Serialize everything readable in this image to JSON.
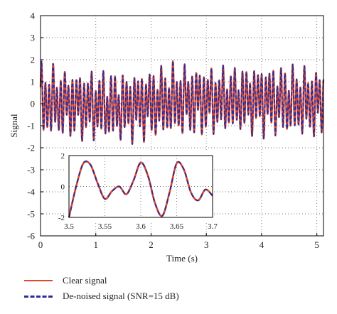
{
  "chart_data": {
    "type": "line",
    "xlabel": "Time (s)",
    "ylabel": "Signal",
    "xlim": [
      0,
      5.12
    ],
    "ylim": [
      -6,
      4
    ],
    "xticks": [
      "0",
      "1",
      "2",
      "3",
      "4",
      "5"
    ],
    "yticks": [
      "4",
      "3",
      "2",
      "1",
      "0",
      "-1",
      "-2",
      "-3",
      "-4",
      "-5",
      "-6"
    ],
    "grid": true,
    "legend_position": "bottom-left, outside plot",
    "series": [
      {
        "name": "Clear signal",
        "color": "#e0462a",
        "style": "solid"
      },
      {
        "name": "De-noised signal (SNR=15 dB)",
        "color": "#2a2f9a",
        "style": "dashed"
      }
    ],
    "main_envelope": {
      "x": [
        0,
        0.5,
        1.0,
        1.5,
        2.0,
        2.5,
        3.0,
        3.5,
        4.0,
        4.5,
        5.0
      ],
      "upper": [
        2.0,
        1.7,
        1.7,
        1.6,
        1.8,
        2.0,
        1.9,
        1.8,
        2.0,
        1.9,
        1.8
      ],
      "lower": [
        -1.8,
        -1.7,
        -1.9,
        -1.9,
        -1.8,
        -1.7,
        -1.6,
        -1.5,
        -1.6,
        -1.7,
        -1.7
      ]
    },
    "inset": {
      "xlim": [
        3.5,
        3.7
      ],
      "ylim": [
        -2,
        2
      ],
      "xticks": [
        "3.5",
        "3.55",
        "3.6",
        "3.65",
        "3.7"
      ],
      "yticks": [
        "2",
        "0",
        "-2"
      ],
      "x": [
        3.5,
        3.51,
        3.52,
        3.53,
        3.54,
        3.55,
        3.56,
        3.57,
        3.58,
        3.59,
        3.6,
        3.61,
        3.62,
        3.63,
        3.64,
        3.65,
        3.66,
        3.67,
        3.68,
        3.69,
        3.7
      ],
      "y": [
        -2.0,
        0.0,
        1.5,
        1.4,
        0.2,
        -0.8,
        -0.3,
        0.0,
        -0.5,
        0.4,
        1.55,
        0.7,
        -1.1,
        -1.9,
        -0.4,
        1.5,
        1.1,
        -0.4,
        -0.9,
        -0.2,
        -0.6
      ]
    }
  }
}
